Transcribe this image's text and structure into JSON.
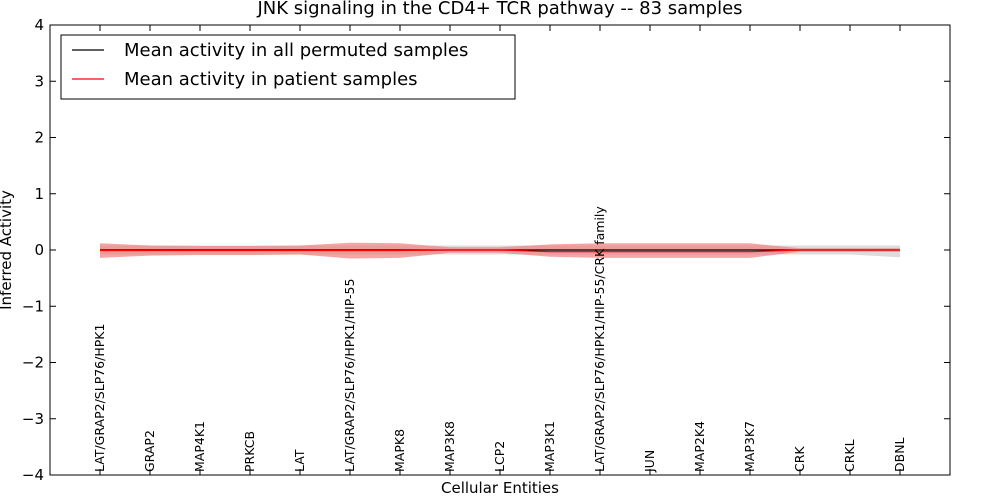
{
  "chart_data": {
    "type": "line",
    "title": "JNK signaling in the CD4+ TCR pathway -- 83 samples",
    "xlabel": "Cellular Entities",
    "ylabel": "Inferred Activity",
    "ylim": [
      -4,
      4
    ],
    "yticks": [
      4,
      3,
      2,
      1,
      0,
      -1,
      -2,
      -3,
      -4
    ],
    "ytick_labels": [
      "4",
      "3",
      "2",
      "1",
      "0",
      "−1",
      "−2",
      "−3",
      "−4"
    ],
    "categories": [
      "LAT/GRAP2/SLP76/HPK1",
      "GRAP2",
      "MAP4K1",
      "PRKCB",
      "LAT",
      "LAT/GRAP2/SLP76/HPK1/HIP-55",
      "MAPK8",
      "MAP3K8",
      "LCP2",
      "MAP3K1",
      "LAT/GRAP2/SLP76/HPK1/HIP-55/CRK family",
      "JUN",
      "MAP2K4",
      "MAP3K7",
      "CRK",
      "CRKL",
      "DBNL"
    ],
    "legend": {
      "position": "top-left",
      "entries": [
        "Mean activity in all permuted samples",
        "Mean activity in patient samples"
      ]
    },
    "series": [
      {
        "name": "Mean activity in all permuted samples",
        "color": "#000000",
        "values": [
          0.0,
          0.0,
          0.0,
          0.0,
          0.0,
          0.0,
          0.0,
          0.0,
          0.0,
          0.0,
          0.0,
          0.0,
          0.0,
          0.0,
          0.0,
          0.0,
          0.0
        ],
        "band_upper": [
          0.08,
          0.08,
          0.08,
          0.08,
          0.08,
          0.08,
          0.08,
          0.08,
          0.08,
          0.08,
          0.08,
          0.08,
          0.08,
          0.08,
          0.08,
          0.08,
          0.08
        ],
        "band_lower": [
          -0.08,
          -0.08,
          -0.08,
          -0.08,
          -0.08,
          -0.08,
          -0.08,
          -0.08,
          -0.08,
          -0.08,
          -0.08,
          -0.08,
          -0.08,
          -0.08,
          -0.08,
          -0.08,
          -0.13
        ],
        "band_color": "#bfbfbf"
      },
      {
        "name": "Mean activity in patient samples",
        "color": "#ff0000",
        "values": [
          -0.01,
          -0.01,
          -0.01,
          -0.01,
          -0.01,
          -0.01,
          -0.01,
          0.0,
          0.0,
          -0.03,
          -0.03,
          -0.03,
          -0.03,
          -0.03,
          0.0,
          0.0,
          0.0
        ],
        "band_upper": [
          0.12,
          0.08,
          0.07,
          0.07,
          0.08,
          0.13,
          0.12,
          0.05,
          0.05,
          0.1,
          0.12,
          0.12,
          0.12,
          0.12,
          0.03,
          0.03,
          0.03
        ],
        "band_lower": [
          -0.14,
          -0.1,
          -0.09,
          -0.09,
          -0.08,
          -0.15,
          -0.14,
          -0.05,
          -0.05,
          -0.12,
          -0.14,
          -0.14,
          -0.14,
          -0.14,
          -0.03,
          -0.03,
          -0.03
        ],
        "band_color": "#f08080"
      }
    ]
  }
}
